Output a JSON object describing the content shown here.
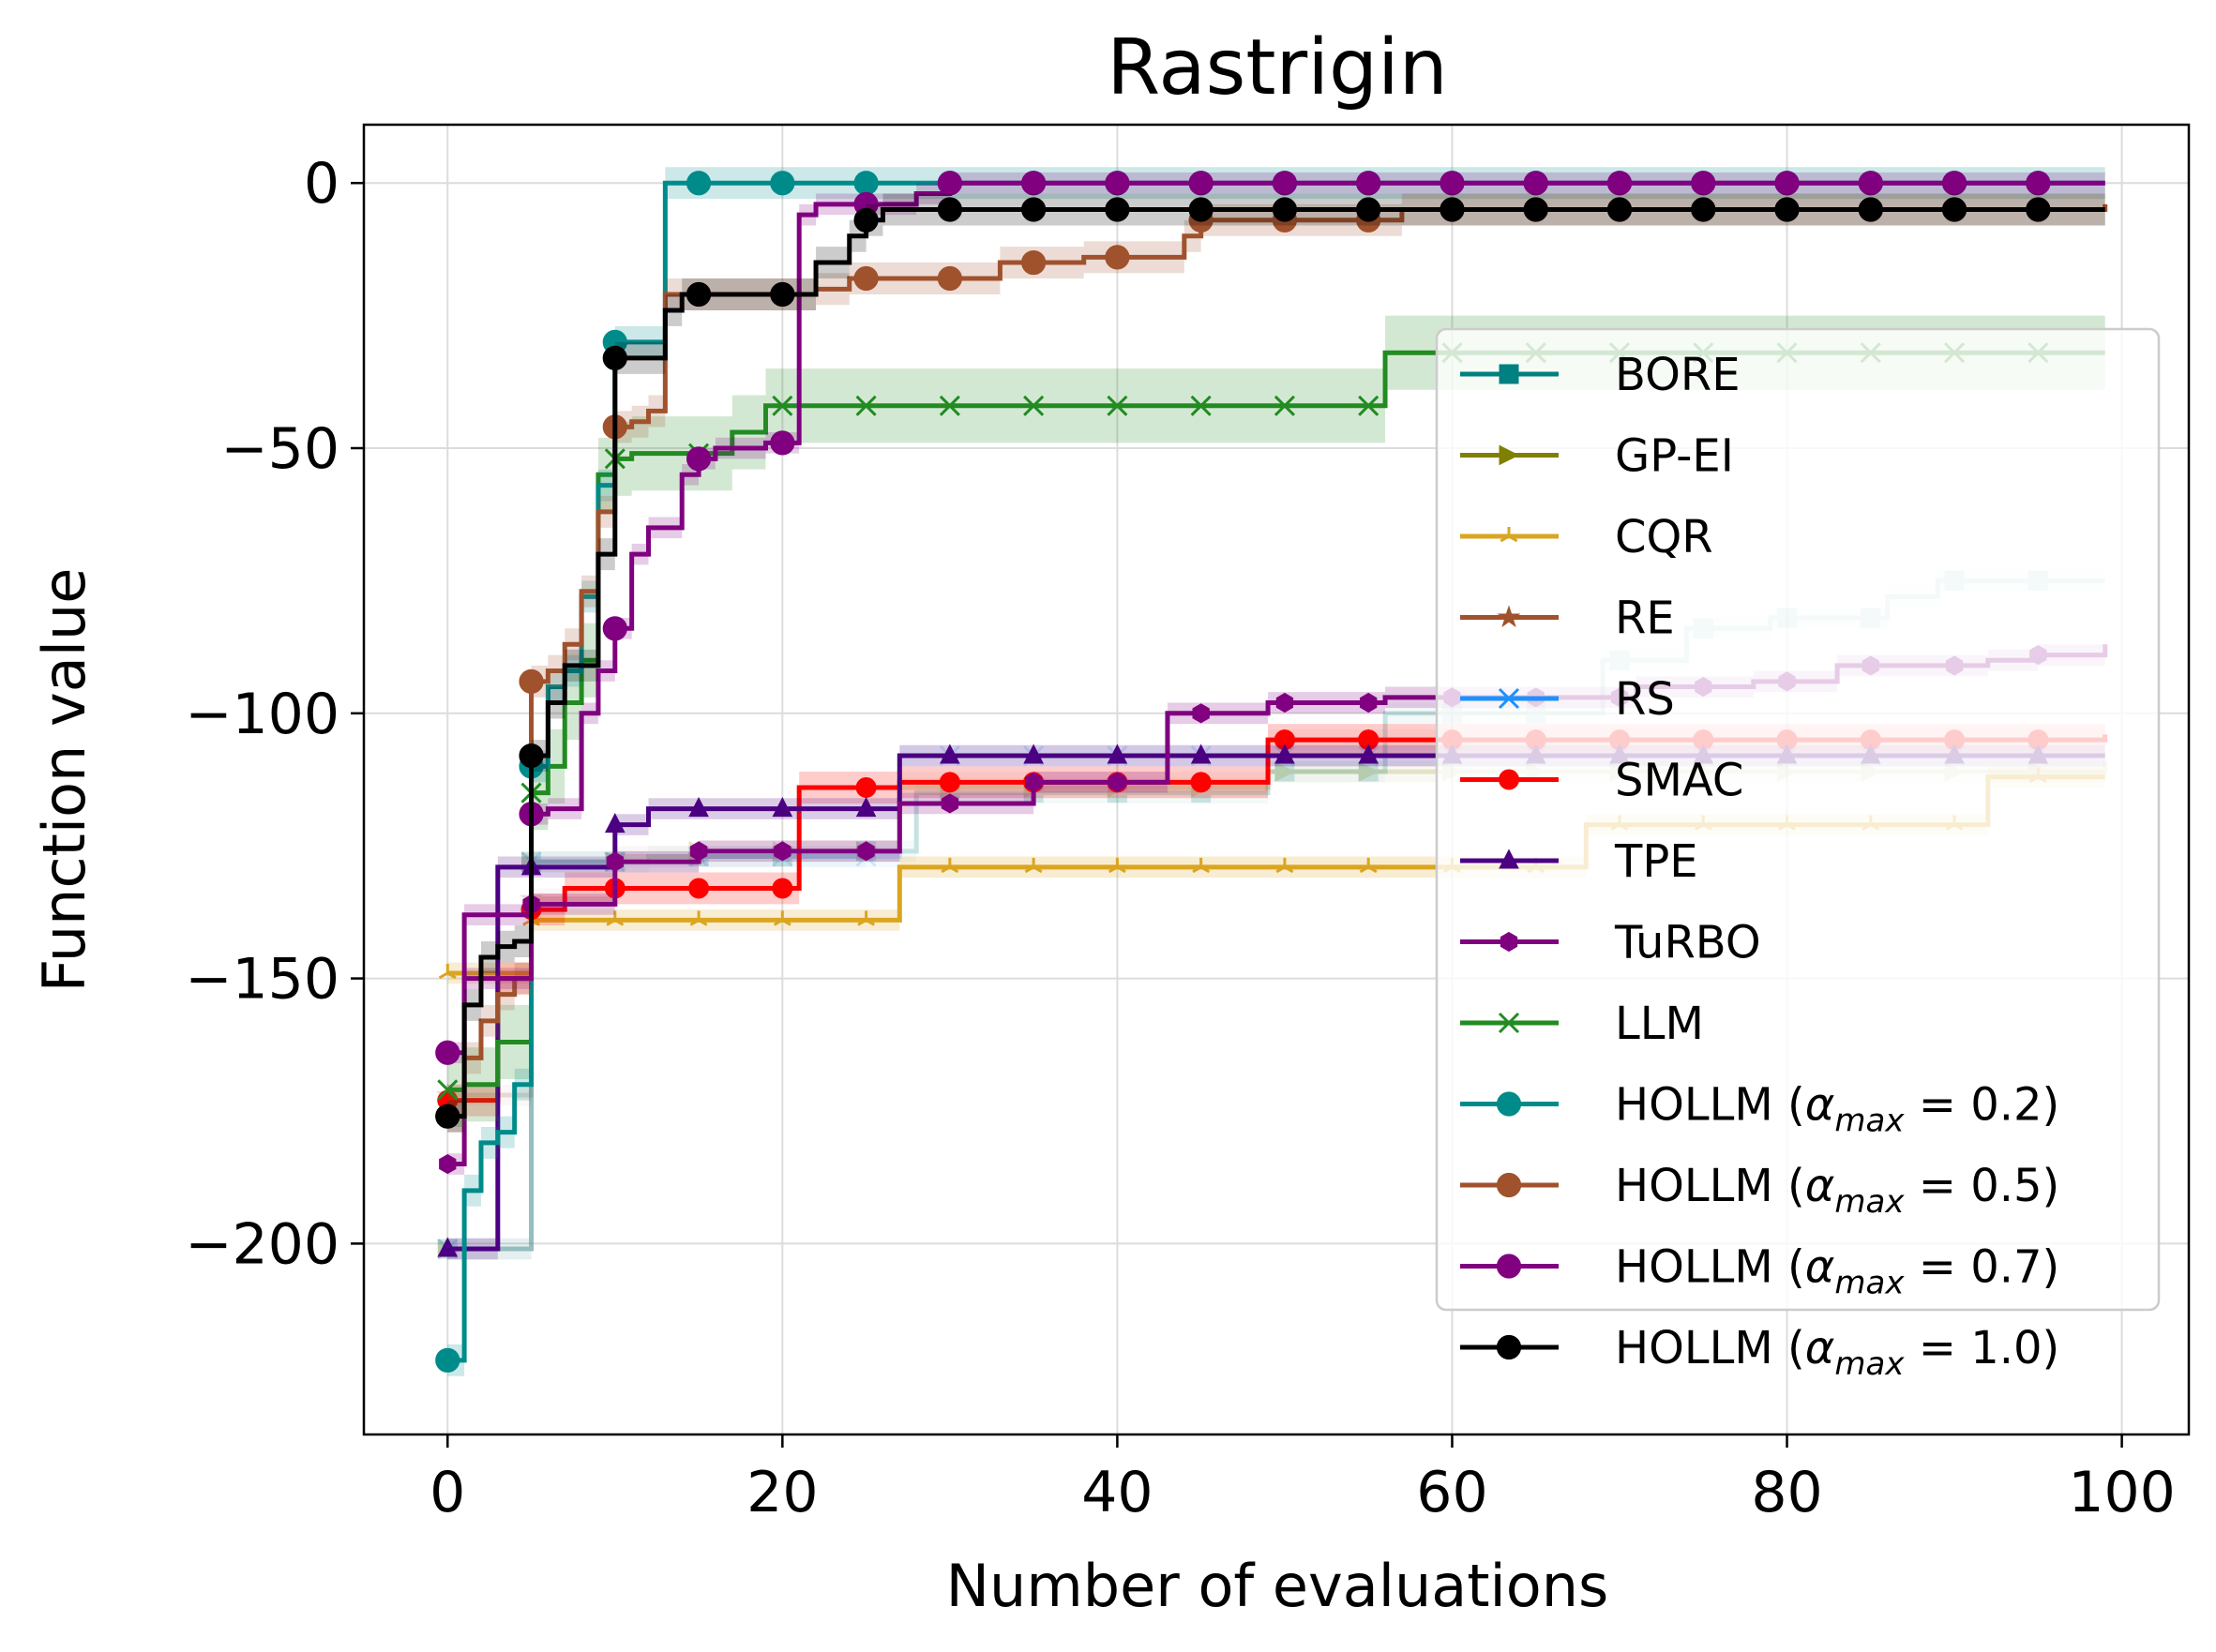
{
  "chart_data": {
    "type": "line",
    "title": "Rastrigin",
    "xlabel": "Number of evaluations",
    "ylabel": "Function value",
    "xlim": [
      -5,
      104
    ],
    "ylim": [
      -236,
      11
    ],
    "xticks": [
      0,
      20,
      40,
      60,
      80,
      100
    ],
    "xtick_labels": [
      "0",
      "20",
      "40",
      "60",
      "80",
      "100"
    ],
    "yticks": [
      0,
      -50,
      -100,
      -150,
      -200
    ],
    "ytick_labels": [
      "0",
      "−50",
      "−100",
      "−150",
      "−200"
    ],
    "grid": true,
    "legend_position": "right",
    "marker_every": 5,
    "series": [
      {
        "name": "BORE",
        "color": "#008080",
        "marker": "square",
        "faded": true,
        "band": 2,
        "steps": [
          [
            0,
            -201
          ],
          [
            5,
            -128
          ],
          [
            10,
            -128
          ],
          [
            12,
            -127
          ],
          [
            25,
            -126
          ],
          [
            28,
            -115
          ],
          [
            49,
            -111
          ],
          [
            56,
            -100
          ],
          [
            69,
            -90
          ],
          [
            74,
            -84
          ],
          [
            79,
            -82
          ],
          [
            86,
            -78
          ],
          [
            89,
            -75
          ],
          [
            99,
            -75
          ]
        ]
      },
      {
        "name": "GP-EI",
        "color": "#808000",
        "marker": "triangle-right",
        "faded": true,
        "band": 2,
        "steps": [
          [
            0,
            -201
          ],
          [
            5,
            -128
          ],
          [
            10,
            -128
          ],
          [
            15,
            -126
          ],
          [
            27,
            -114
          ],
          [
            45,
            -114
          ],
          [
            49,
            -111
          ],
          [
            99,
            -109
          ]
        ]
      },
      {
        "name": "CQR",
        "color": "#DAA520",
        "marker": "tri",
        "faded": false,
        "band": 2,
        "steps": [
          [
            0,
            -149
          ],
          [
            5,
            -139
          ],
          [
            26,
            -139
          ],
          [
            27,
            -129
          ],
          [
            67,
            -129
          ],
          [
            68,
            -121
          ],
          [
            91,
            -121
          ],
          [
            92,
            -112
          ],
          [
            99,
            -112
          ]
        ]
      },
      {
        "name": "RE",
        "color": "#A0522D",
        "marker": "star",
        "faded": true,
        "band": 2,
        "steps": [
          [
            0,
            -172
          ],
          [
            5,
            -135
          ],
          [
            10,
            -127
          ],
          [
            20,
            -126
          ],
          [
            27,
            -113
          ],
          [
            49,
            -105
          ],
          [
            99,
            -104
          ]
        ]
      },
      {
        "name": "RS",
        "color": "#1E90FF",
        "marker": "x",
        "faded": true,
        "band": 2,
        "steps": [
          [
            0,
            -201
          ],
          [
            5,
            -128
          ],
          [
            10,
            -128
          ],
          [
            15,
            -127
          ],
          [
            27,
            -108
          ],
          [
            99,
            -108
          ]
        ]
      },
      {
        "name": "SMAC",
        "color": "#FF0000",
        "marker": "circle",
        "faded": false,
        "band": 3,
        "steps": [
          [
            0,
            -173
          ],
          [
            3,
            -150
          ],
          [
            5,
            -137
          ],
          [
            7,
            -133
          ],
          [
            20,
            -133
          ],
          [
            21,
            -114
          ],
          [
            27,
            -113
          ],
          [
            45,
            -113
          ],
          [
            49,
            -105
          ],
          [
            99,
            -104
          ]
        ]
      },
      {
        "name": "TPE",
        "color": "#4B0082",
        "marker": "triangle-up",
        "faded": false,
        "band": 2,
        "steps": [
          [
            0,
            -201
          ],
          [
            3,
            -129
          ],
          [
            10,
            -121
          ],
          [
            12,
            -118
          ],
          [
            26,
            -118
          ],
          [
            27,
            -108
          ],
          [
            99,
            -108
          ]
        ]
      },
      {
        "name": "TuRBO",
        "color": "#800080",
        "marker": "hexagon",
        "faded": false,
        "band": 2,
        "steps": [
          [
            0,
            -185
          ],
          [
            1,
            -138
          ],
          [
            5,
            -136
          ],
          [
            10,
            -128
          ],
          [
            15,
            -126
          ],
          [
            26,
            -126
          ],
          [
            27,
            -117
          ],
          [
            35,
            -113
          ],
          [
            42,
            -113
          ],
          [
            43,
            -100
          ],
          [
            49,
            -98
          ],
          [
            56,
            -97
          ],
          [
            71,
            -95
          ],
          [
            75,
            -95
          ],
          [
            78,
            -94
          ],
          [
            83,
            -91
          ],
          [
            92,
            -90
          ],
          [
            95,
            -89
          ],
          [
            99,
            -87
          ]
        ]
      },
      {
        "name": "LLM",
        "color": "#228B22",
        "marker": "x",
        "faded": false,
        "band": 7,
        "steps": [
          [
            0,
            -171
          ],
          [
            1,
            -170
          ],
          [
            3,
            -162
          ],
          [
            4,
            -162
          ],
          [
            5,
            -115
          ],
          [
            6,
            -110
          ],
          [
            7,
            -98
          ],
          [
            8,
            -90
          ],
          [
            9,
            -55
          ],
          [
            10,
            -52
          ],
          [
            11,
            -51
          ],
          [
            12,
            -51
          ],
          [
            17,
            -47
          ],
          [
            19,
            -42
          ],
          [
            55,
            -42
          ],
          [
            56,
            -32
          ],
          [
            99,
            -32
          ]
        ]
      },
      {
        "name": "HOLLM (αmax = 0.2)",
        "label_main": "HOLLM (",
        "label_greek": "α",
        "label_sub": "max",
        "label_tail": " = 0.2)",
        "color": "#008B8B",
        "marker": "dot",
        "faded": false,
        "band": 3,
        "steps": [
          [
            0,
            -222
          ],
          [
            1,
            -190
          ],
          [
            2,
            -181
          ],
          [
            3,
            -179
          ],
          [
            4,
            -170
          ],
          [
            5,
            -110
          ],
          [
            6,
            -95
          ],
          [
            7,
            -92
          ],
          [
            8,
            -78
          ],
          [
            9,
            -57
          ],
          [
            10,
            -30
          ],
          [
            12,
            -30
          ],
          [
            13,
            0
          ],
          [
            99,
            0
          ]
        ]
      },
      {
        "name": "HOLLM (αmax = 0.5)",
        "label_main": "HOLLM (",
        "label_greek": "α",
        "label_sub": "max",
        "label_tail": " = 0.5)",
        "color": "#A0522D",
        "marker": "dot",
        "faded": false,
        "band": 3,
        "steps": [
          [
            0,
            -176
          ],
          [
            1,
            -165
          ],
          [
            2,
            -158
          ],
          [
            3,
            -153
          ],
          [
            4,
            -150
          ],
          [
            5,
            -94
          ],
          [
            6,
            -92
          ],
          [
            7,
            -87
          ],
          [
            8,
            -77
          ],
          [
            9,
            -62
          ],
          [
            10,
            -46
          ],
          [
            11,
            -45
          ],
          [
            12,
            -43
          ],
          [
            13,
            -21
          ],
          [
            21,
            -21
          ],
          [
            22,
            -20
          ],
          [
            24,
            -18
          ],
          [
            29,
            -18
          ],
          [
            33,
            -15
          ],
          [
            38,
            -14
          ],
          [
            44,
            -10
          ],
          [
            45,
            -7
          ],
          [
            56,
            -7
          ],
          [
            57,
            -5
          ],
          [
            99,
            -4
          ]
        ]
      },
      {
        "name": "HOLLM (αmax = 0.7)",
        "label_main": "HOLLM (",
        "label_greek": "α",
        "label_sub": "max",
        "label_tail": " = 0.7)",
        "color": "#800080",
        "marker": "dot",
        "faded": false,
        "band": 2,
        "steps": [
          [
            0,
            -164
          ],
          [
            1,
            -150
          ],
          [
            5,
            -119
          ],
          [
            6,
            -118
          ],
          [
            8,
            -100
          ],
          [
            9,
            -92
          ],
          [
            10,
            -84
          ],
          [
            11,
            -70
          ],
          [
            12,
            -65
          ],
          [
            14,
            -55
          ],
          [
            15,
            -52
          ],
          [
            16,
            -50
          ],
          [
            19,
            -49
          ],
          [
            20,
            -49
          ],
          [
            21,
            -6
          ],
          [
            22,
            -4
          ],
          [
            25,
            -4
          ],
          [
            28,
            -2
          ],
          [
            30,
            0
          ],
          [
            99,
            0
          ]
        ]
      },
      {
        "name": "HOLLM (αmax = 1.0)",
        "label_main": "HOLLM (",
        "label_greek": "α",
        "label_sub": "max",
        "label_tail": " = 1.0)",
        "color": "#000000",
        "marker": "dot",
        "faded": false,
        "band": 3,
        "steps": [
          [
            0,
            -176
          ],
          [
            1,
            -155
          ],
          [
            2,
            -146
          ],
          [
            3,
            -144
          ],
          [
            4,
            -143
          ],
          [
            5,
            -108
          ],
          [
            6,
            -98
          ],
          [
            7,
            -91
          ],
          [
            8,
            -91
          ],
          [
            9,
            -70
          ],
          [
            10,
            -33
          ],
          [
            12,
            -33
          ],
          [
            13,
            -24
          ],
          [
            14,
            -21
          ],
          [
            21,
            -21
          ],
          [
            22,
            -15
          ],
          [
            24,
            -10
          ],
          [
            25,
            -7
          ],
          [
            26,
            -5
          ],
          [
            99,
            -5
          ]
        ]
      }
    ]
  }
}
